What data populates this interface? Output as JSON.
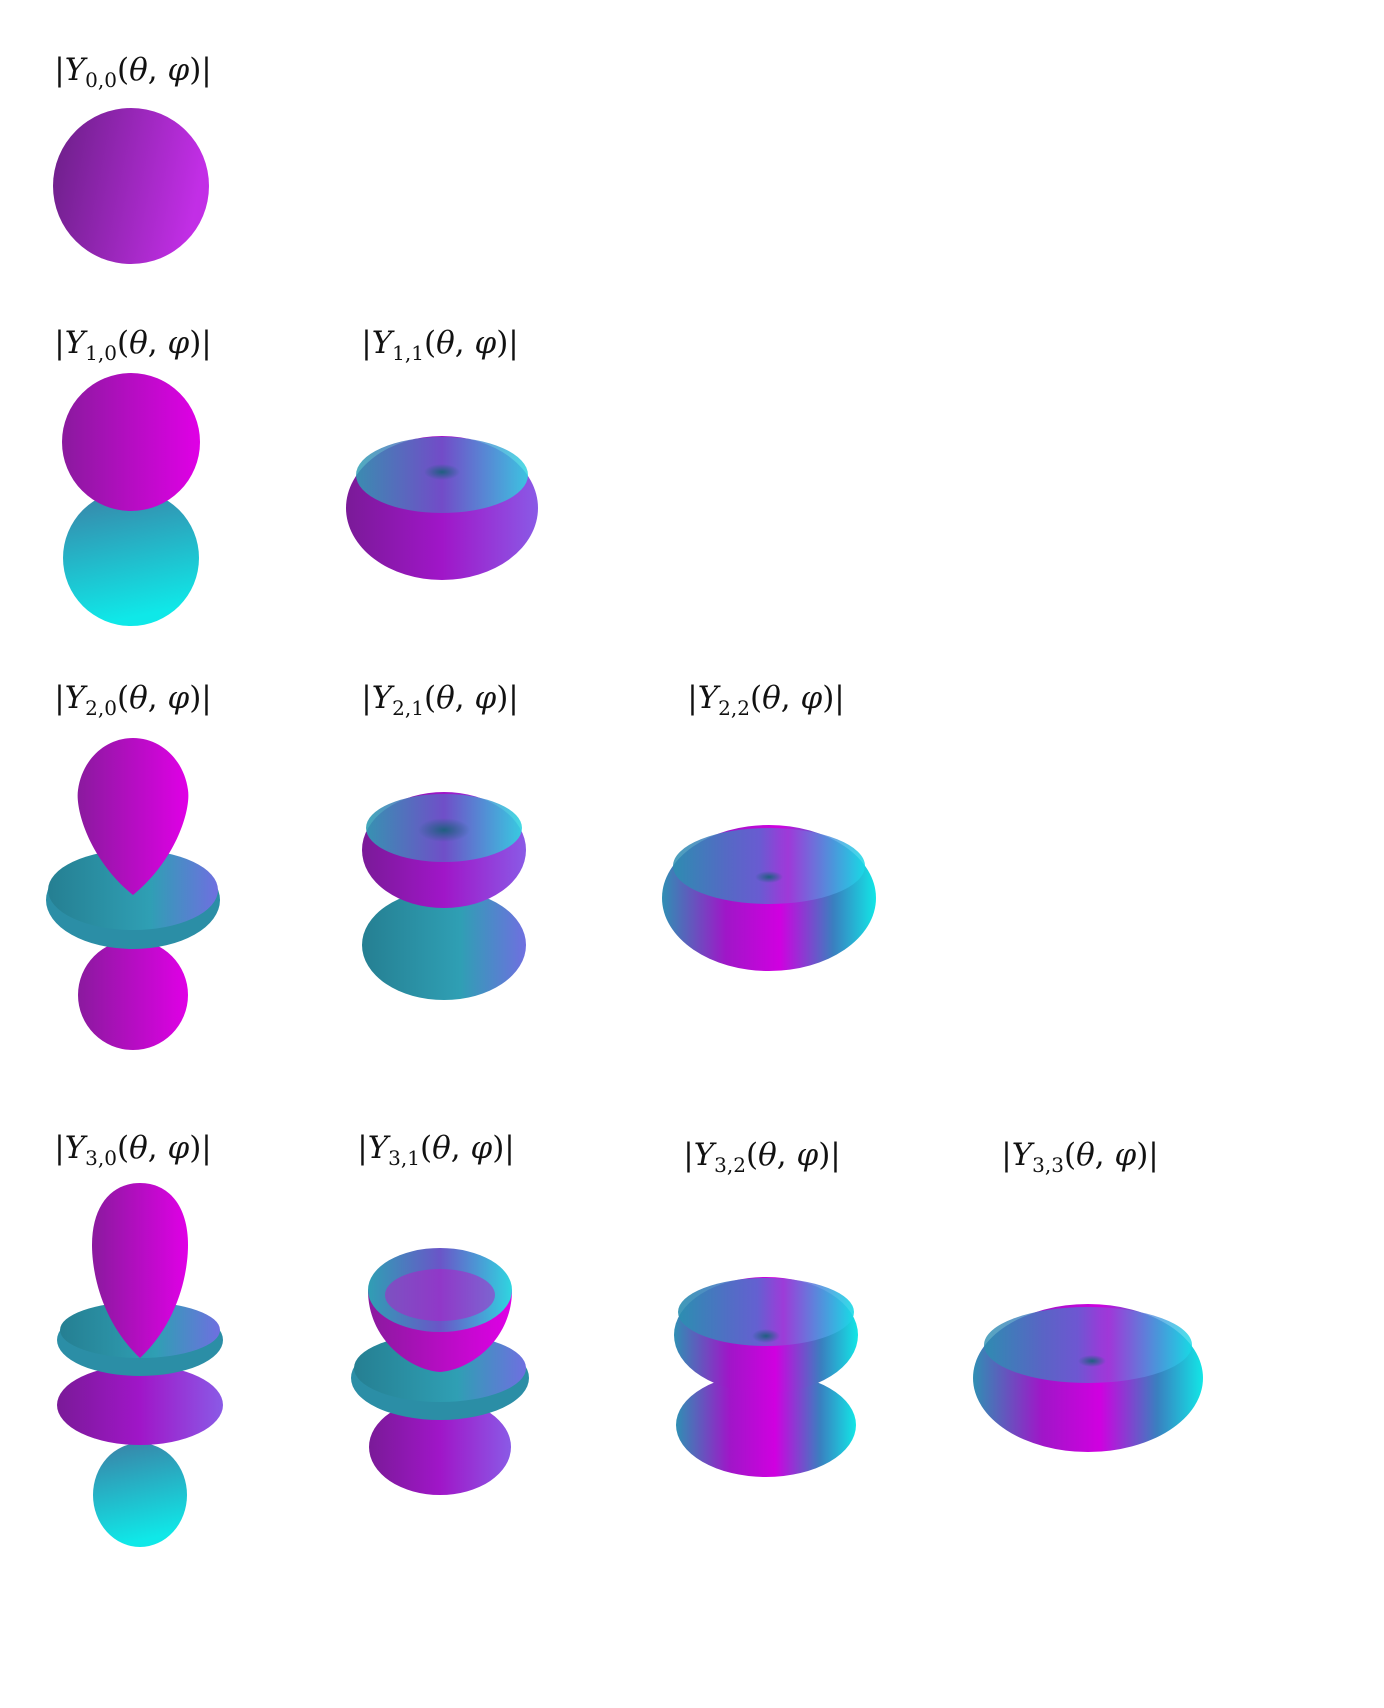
{
  "title": "",
  "colors": {
    "magenta": "#e000e6",
    "purple": "#8b1fa8",
    "violet": "#7a5ae0",
    "teal": "#2f9fb4",
    "cyan": "#12e6e6"
  },
  "plots": [
    {
      "id": "Y00",
      "l": "0",
      "m": "0",
      "label": "|Y0,0(θ,φ)|"
    },
    {
      "id": "Y10",
      "l": "1",
      "m": "0",
      "label": "|Y1,0(θ,φ)|"
    },
    {
      "id": "Y11",
      "l": "1",
      "m": "1",
      "label": "|Y1,1(θ,φ)|"
    },
    {
      "id": "Y20",
      "l": "2",
      "m": "0",
      "label": "|Y2,0(θ,φ)|"
    },
    {
      "id": "Y21",
      "l": "2",
      "m": "1",
      "label": "|Y2,1(θ,φ)|"
    },
    {
      "id": "Y22",
      "l": "2",
      "m": "2",
      "label": "|Y2,2(θ,φ)|"
    },
    {
      "id": "Y30",
      "l": "3",
      "m": "0",
      "label": "|Y3,0(θ,φ)|"
    },
    {
      "id": "Y31",
      "l": "3",
      "m": "1",
      "label": "|Y3,1(θ,φ)|"
    },
    {
      "id": "Y32",
      "l": "3",
      "m": "2",
      "label": "|Y3,2(θ,φ)|"
    },
    {
      "id": "Y33",
      "l": "3",
      "m": "3",
      "label": "|Y3,3(θ,φ)|"
    }
  ]
}
